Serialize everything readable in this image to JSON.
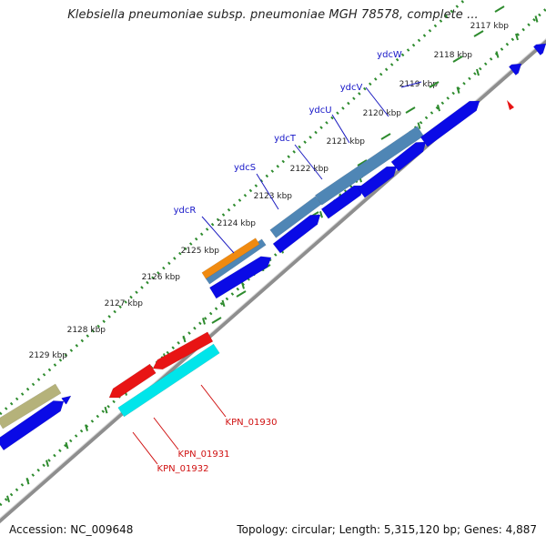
{
  "title": "Klebsiella pneumoniae subsp. pneumoniae MGH 78578, complete ...",
  "footer": {
    "accession": "Accession: NC_009648",
    "summary": "Topology: circular; Length: 5,315,120 bp; Genes: 4,887"
  },
  "colors": {
    "backbone": "#8e8e8e",
    "tick": "#2e8b2e",
    "cds_forward": "#0a0ae6",
    "gene_steelblue": "#4f86b5",
    "gene_orange": "#f08a10",
    "gene_khaki": "#b5b27a",
    "cds_red": "#e81414",
    "cds_cyan": "#00e5ea",
    "label_blue": "#1616c8",
    "label_red": "#d01010"
  },
  "ruler": [
    {
      "label": "2117 kbp"
    },
    {
      "label": "2118 kbp"
    },
    {
      "label": "2119 kbp"
    },
    {
      "label": "2120 kbp"
    },
    {
      "label": "2121 kbp"
    },
    {
      "label": "2122 kbp"
    },
    {
      "label": "2123 kbp"
    },
    {
      "label": "2124 kbp"
    },
    {
      "label": "2125 kbp"
    },
    {
      "label": "2126 kbp"
    },
    {
      "label": "2127 kbp"
    },
    {
      "label": "2128 kbp"
    },
    {
      "label": "2129 kbp"
    }
  ],
  "gene_labels_top": [
    "ydcW",
    "ydcV",
    "ydcU",
    "ydcT",
    "ydcS",
    "ydcR"
  ],
  "gene_labels_bottom": [
    "KPN_01930",
    "KPN_01931",
    "KPN_01932"
  ]
}
